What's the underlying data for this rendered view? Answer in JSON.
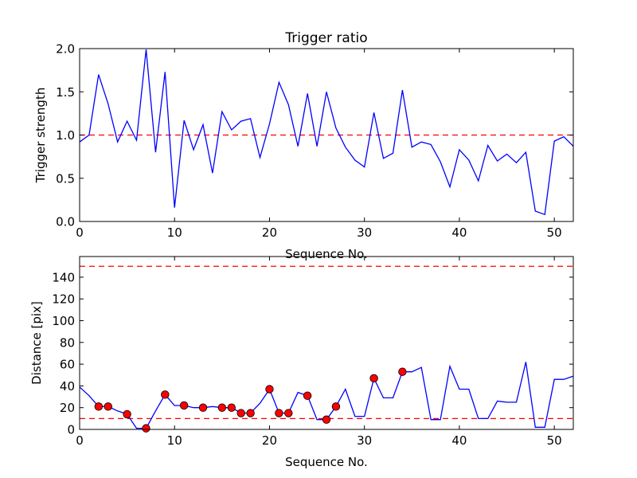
{
  "chart_data": [
    {
      "type": "line",
      "title": "Trigger ratio",
      "xlabel": "Sequence No.",
      "ylabel": "Trigger strength",
      "xlim": [
        0,
        52
      ],
      "ylim": [
        0,
        2.0
      ],
      "xticks": [
        "0",
        "10",
        "20",
        "30",
        "40",
        "50"
      ],
      "xtick_values": [
        0,
        10,
        20,
        30,
        40,
        50
      ],
      "yticks": [
        "0.0",
        "0.5",
        "1.0",
        "1.5",
        "2.0"
      ],
      "ytick_values": [
        0,
        0.5,
        1.0,
        1.5,
        2.0
      ],
      "grid": false,
      "series": [
        {
          "name": "trigger strength",
          "color": "#0000ff",
          "x": [
            0,
            1,
            2,
            3,
            4,
            5,
            6,
            7,
            8,
            9,
            10,
            11,
            12,
            13,
            14,
            15,
            16,
            17,
            18,
            19,
            20,
            21,
            22,
            23,
            24,
            25,
            26,
            27,
            28,
            29,
            30,
            31,
            32,
            33,
            34,
            35,
            36,
            37,
            38,
            39,
            40,
            41,
            42,
            43,
            44,
            45,
            46,
            47,
            48,
            49,
            50,
            51,
            52
          ],
          "values": [
            0.92,
            1.0,
            1.7,
            1.36,
            0.92,
            1.16,
            0.94,
            1.99,
            0.8,
            1.73,
            0.16,
            1.17,
            0.83,
            1.12,
            0.56,
            1.27,
            1.06,
            1.16,
            1.19,
            0.74,
            1.13,
            1.61,
            1.35,
            0.87,
            1.48,
            0.87,
            1.5,
            1.08,
            0.86,
            0.71,
            0.63,
            1.26,
            0.73,
            0.79,
            1.52,
            0.86,
            0.92,
            0.89,
            0.69,
            0.4,
            0.83,
            0.71,
            0.47,
            0.88,
            0.7,
            0.78,
            0.68,
            0.8,
            0.12,
            0.08,
            0.93,
            0.98,
            0.87
          ]
        }
      ],
      "reference_lines": [
        {
          "y": 1.0,
          "color": "#ff0000",
          "style": "dashed"
        }
      ]
    },
    {
      "type": "line",
      "title": "",
      "xlabel": "Sequence No.",
      "ylabel": "Distance [pix]",
      "xlim": [
        0,
        52
      ],
      "ylim": [
        0,
        159
      ],
      "xticks": [
        "0",
        "10",
        "20",
        "30",
        "40",
        "50"
      ],
      "xtick_values": [
        0,
        10,
        20,
        30,
        40,
        50
      ],
      "yticks": [
        "0",
        "20",
        "40",
        "60",
        "80",
        "100",
        "120",
        "140"
      ],
      "ytick_values": [
        0,
        20,
        40,
        60,
        80,
        100,
        120,
        140
      ],
      "grid": false,
      "series": [
        {
          "name": "distance",
          "color": "#0000ff",
          "x": [
            0,
            1,
            2,
            3,
            4,
            5,
            6,
            7,
            8,
            9,
            10,
            11,
            12,
            13,
            14,
            15,
            16,
            17,
            18,
            19,
            20,
            21,
            22,
            23,
            24,
            25,
            26,
            27,
            28,
            29,
            30,
            31,
            32,
            33,
            34,
            35,
            36,
            37,
            38,
            39,
            40,
            41,
            42,
            43,
            44,
            45,
            46,
            47,
            48,
            49,
            50,
            51,
            52
          ],
          "values": [
            39,
            31,
            21,
            21,
            17,
            14,
            1,
            1,
            17,
            32,
            22,
            22,
            20,
            20,
            21,
            20,
            20,
            15,
            15,
            24,
            37,
            15,
            15,
            34,
            31,
            9,
            9,
            21,
            37,
            12,
            12,
            47,
            29,
            29,
            53,
            53,
            57,
            9,
            9,
            58,
            37,
            37,
            10,
            10,
            26,
            25,
            25,
            62,
            2,
            2,
            46,
            46,
            49
          ]
        },
        {
          "name": "triggered points",
          "color": "#ff0000",
          "marker": "circle",
          "x": [
            2,
            3,
            5,
            7,
            9,
            11,
            13,
            15,
            16,
            17,
            18,
            20,
            21,
            22,
            24,
            26,
            27,
            31,
            34
          ],
          "values": [
            21,
            21,
            14,
            1,
            32,
            22,
            20,
            20,
            20,
            15,
            15,
            37,
            15,
            15,
            31,
            9,
            21,
            47,
            53
          ]
        }
      ],
      "reference_lines": [
        {
          "y": 150,
          "color": "#ff0000",
          "style": "dashed"
        },
        {
          "y": 10,
          "color": "#ff0000",
          "style": "dashed"
        }
      ]
    }
  ]
}
